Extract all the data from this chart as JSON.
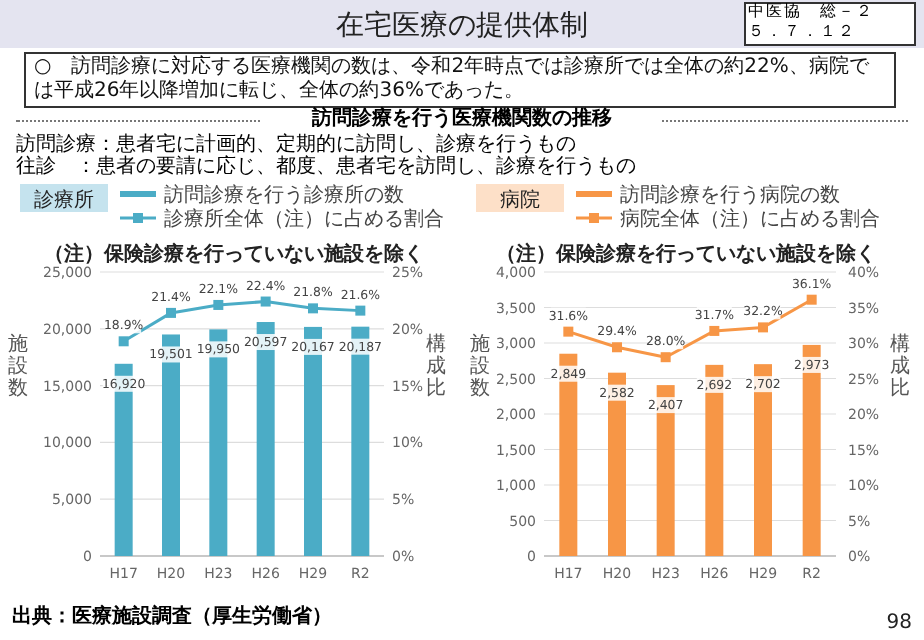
{
  "chart_data": [
    {
      "type": "bar",
      "title": "診療所",
      "categories": [
        "H17",
        "H20",
        "H23",
        "H26",
        "H29",
        "R2"
      ],
      "series": [
        {
          "name": "訪問診療を行う診療所の数",
          "type": "bar",
          "color": "#4bacc6",
          "values": [
            16920,
            19501,
            19950,
            20597,
            20167,
            20187
          ],
          "value_labels": [
            "16,920",
            "19,501",
            "19,950",
            "20,597",
            "20,167",
            "20,187"
          ]
        },
        {
          "name": "診療所全体（注）に占める割合",
          "type": "line",
          "axis": "y2",
          "marker": "square",
          "color": "#4bacc6",
          "values": [
            18.9,
            21.4,
            22.1,
            22.4,
            21.8,
            21.6
          ],
          "value_labels": [
            "18.9%",
            "21.4%",
            "22.1%",
            "22.4%",
            "21.8%",
            "21.6%"
          ]
        }
      ],
      "ylim": [
        0,
        25000
      ],
      "yticks": [
        {
          "value": 0,
          "label": "0"
        },
        {
          "value": 5000,
          "label": "5,000"
        },
        {
          "value": 10000,
          "label": "10,000"
        },
        {
          "value": 15000,
          "label": "15,000"
        },
        {
          "value": 20000,
          "label": "20,000"
        },
        {
          "value": 25000,
          "label": "25,000"
        }
      ],
      "y2lim": [
        0,
        25
      ],
      "y2ticks": [
        {
          "value": 0,
          "label": "0%"
        },
        {
          "value": 5,
          "label": "5%"
        },
        {
          "value": 10,
          "label": "10%"
        },
        {
          "value": 15,
          "label": "15%"
        },
        {
          "value": 20,
          "label": "20%"
        },
        {
          "value": 25,
          "label": "25%"
        }
      ],
      "ylabel": "施設数",
      "y2label": "構成比",
      "grid": "y",
      "legend": "top",
      "annotations": [
        "在宅医療の提供体制",
        "中医協　総－２",
        "５．７．１２",
        "○　訪問診療に対応する医療機関の数は、令和2年時点では診療所では全体の約22%、病院では平成26年以降増加に転じ、全体の約36%であった。",
        "訪問診療を行う医療機関数の推移",
        "訪問診療：患者宅に計画的、定期的に訪問し、診療を行うもの",
        "往診　：患者の要請に応じ、都度、患者宅を訪問し、診療を行うもの",
        "（注）保険診療を行っていない施設を除く",
        "出典：医療施設調査（厚生労働省）"
      ]
    },
    {
      "type": "bar",
      "title": "病院",
      "categories": [
        "H17",
        "H20",
        "H23",
        "H26",
        "H29",
        "R2"
      ],
      "series": [
        {
          "name": "訪問診療を行う病院の数",
          "type": "bar",
          "color": "#f79646",
          "values": [
            2849,
            2582,
            2407,
            2692,
            2702,
            2973
          ],
          "value_labels": [
            "2,849",
            "2,582",
            "2,407",
            "2,692",
            "2,702",
            "2,973"
          ]
        },
        {
          "name": "病院全体（注）に占める割合",
          "type": "line",
          "axis": "y2",
          "marker": "square",
          "color": "#f79646",
          "values": [
            31.6,
            29.4,
            28.0,
            31.7,
            32.2,
            36.1
          ],
          "value_labels": [
            "31.6%",
            "29.4%",
            "28.0%",
            "31.7%",
            "32.2%",
            "36.1%"
          ]
        }
      ],
      "ylim": [
        0,
        4000
      ],
      "yticks": [
        {
          "value": 0,
          "label": "0"
        },
        {
          "value": 500,
          "label": "500"
        },
        {
          "value": 1000,
          "label": "1,000"
        },
        {
          "value": 1500,
          "label": "1,500"
        },
        {
          "value": 2000,
          "label": "2,000"
        },
        {
          "value": 2500,
          "label": "2,500"
        },
        {
          "value": 3000,
          "label": "3,000"
        },
        {
          "value": 3500,
          "label": "3,500"
        },
        {
          "value": 4000,
          "label": "4,000"
        }
      ],
      "y2lim": [
        0,
        40
      ],
      "y2ticks": [
        {
          "value": 0,
          "label": "0%"
        },
        {
          "value": 5,
          "label": "5%"
        },
        {
          "value": 10,
          "label": "10%"
        },
        {
          "value": 15,
          "label": "15%"
        },
        {
          "value": 20,
          "label": "20%"
        },
        {
          "value": 25,
          "label": "25%"
        },
        {
          "value": 30,
          "label": "30%"
        },
        {
          "value": 35,
          "label": "35%"
        },
        {
          "value": 40,
          "label": "40%"
        }
      ],
      "ylabel": "施設数",
      "y2label": "構成比",
      "grid": "y",
      "legend": "top",
      "annotations": [
        "（注）保険診療を行っていない施設を除く",
        "98"
      ]
    }
  ]
}
